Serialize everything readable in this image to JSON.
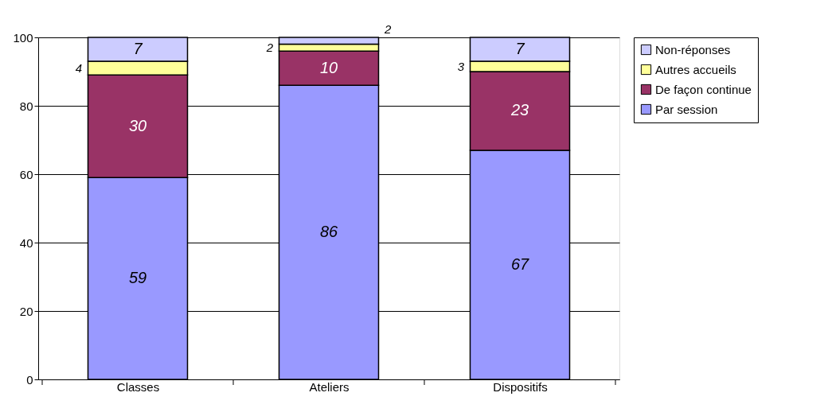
{
  "chart_data": {
    "type": "bar",
    "stacked": true,
    "categories": [
      "Classes",
      "Ateliers",
      "Dispositifs"
    ],
    "series": [
      {
        "name": "Par session",
        "color": "#9999ff",
        "values": [
          59,
          86,
          67
        ]
      },
      {
        "name": "De façon continue",
        "color": "#993366",
        "values": [
          30,
          10,
          23
        ]
      },
      {
        "name": "Autres accueils",
        "color": "#ffff99",
        "values": [
          4,
          2,
          3
        ]
      },
      {
        "name": "Non-réponses",
        "color": "#ccccff",
        "values": [
          7,
          2,
          7
        ]
      }
    ],
    "ylim": [
      0,
      100
    ],
    "yticks": [
      0,
      20,
      40,
      60,
      80,
      100
    ],
    "grid": "y",
    "legend": "right",
    "data_labels": true
  }
}
